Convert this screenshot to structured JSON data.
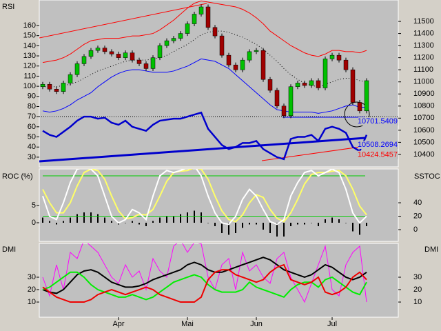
{
  "chart_data": [
    {
      "type": "candlestick",
      "y_label": "RSI",
      "open": [
        10960,
        10980,
        10940,
        10920,
        10990,
        11060,
        11150,
        11210,
        11260,
        11280,
        11250,
        11230,
        11200,
        11240,
        11180,
        11150,
        11110,
        11200,
        11300,
        11340,
        11360,
        11400,
        11480,
        11560,
        11620,
        11450,
        11380,
        11220,
        11140,
        11100,
        11180,
        11250,
        11260,
        11020,
        10930,
        10800,
        10720,
        10960,
        10990,
        10970,
        11010,
        10950,
        11190,
        11220,
        11180,
        11100,
        10830,
        10760
      ],
      "high": [
        11000,
        11000,
        10960,
        11010,
        11080,
        11170,
        11230,
        11280,
        11300,
        11300,
        11270,
        11250,
        11260,
        11260,
        11200,
        11170,
        11220,
        11320,
        11360,
        11380,
        11420,
        11500,
        11580,
        11640,
        11640,
        11470,
        11400,
        11240,
        11160,
        11200,
        11270,
        11280,
        11280,
        11040,
        10950,
        10820,
        10980,
        11010,
        11010,
        11030,
        11030,
        11210,
        11240,
        11240,
        11200,
        11120,
        10850,
        11030
      ],
      "low": [
        10940,
        10920,
        10900,
        10900,
        10970,
        11040,
        11130,
        11190,
        11240,
        11230,
        11210,
        11180,
        11180,
        11160,
        11130,
        11090,
        11090,
        11180,
        11280,
        11320,
        11340,
        11380,
        11460,
        11540,
        11430,
        11360,
        11200,
        11120,
        11080,
        11080,
        11160,
        11230,
        11000,
        10910,
        10780,
        10700,
        10700,
        10940,
        10950,
        10950,
        10930,
        10930,
        11170,
        11160,
        11080,
        10810,
        10740,
        10740
      ],
      "close": [
        10980,
        10940,
        10920,
        10990,
        11060,
        11150,
        11210,
        11260,
        11280,
        11250,
        11230,
        11200,
        11240,
        11180,
        11150,
        11110,
        11200,
        11300,
        11340,
        11360,
        11400,
        11480,
        11560,
        11620,
        11450,
        11380,
        11220,
        11140,
        11100,
        11180,
        11250,
        11260,
        11020,
        10930,
        10800,
        10720,
        10960,
        10990,
        10970,
        11010,
        10950,
        11190,
        11220,
        11180,
        11100,
        10830,
        10760,
        11010
      ],
      "up_color": "#00c000",
      "down_color": "#a00000",
      "series": [
        {
          "color": "#ff0000",
          "style": "solid",
          "values": [
            11160,
            11170,
            11180,
            11200,
            11230,
            11270,
            11310,
            11340,
            11350,
            11360,
            11360,
            11360,
            11370,
            11380,
            11380,
            11390,
            11400,
            11430,
            11470,
            11510,
            11560,
            11610,
            11650,
            11670,
            11660,
            11650,
            11640,
            11630,
            11620,
            11600,
            11570,
            11530,
            11480,
            11420,
            11380,
            11340,
            11300,
            11270,
            11240,
            11220,
            11210,
            11230,
            11260,
            11260,
            11250,
            11250,
            11240,
            11260
          ]
        },
        {
          "color": "#000000",
          "style": "dotted",
          "values": [
            10960,
            10960,
            10960,
            10970,
            10980,
            11000,
            11030,
            11060,
            11090,
            11110,
            11130,
            11150,
            11170,
            11180,
            11180,
            11180,
            11190,
            11200,
            11220,
            11250,
            11280,
            11310,
            11350,
            11390,
            11410,
            11420,
            11420,
            11410,
            11390,
            11370,
            11340,
            11310,
            11270,
            11220,
            11170,
            11110,
            11060,
            11020,
            10990,
            10970,
            10960,
            10980,
            11000,
            11020,
            11030,
            11030,
            11010,
            11000
          ]
        },
        {
          "color": "#0000ff",
          "style": "solid",
          "values": [
            10760,
            10750,
            10760,
            10780,
            10810,
            10850,
            10880,
            10910,
            10960,
            11000,
            11040,
            11070,
            11090,
            11100,
            11100,
            11090,
            11080,
            11080,
            11080,
            11090,
            11110,
            11130,
            11160,
            11190,
            11180,
            11170,
            11140,
            11110,
            11060,
            11010,
            10960,
            10910,
            10860,
            10810,
            10770,
            10760,
            10750,
            10750,
            10750,
            10750,
            10740,
            10750,
            10760,
            10780,
            10800,
            10810,
            10790,
            10790
          ]
        },
        {
          "color": "#0000cc",
          "style": "thick",
          "axis": "y2",
          "values": [
            56,
            52,
            50,
            55,
            60,
            66,
            70,
            70,
            68,
            69,
            64,
            62,
            66,
            60,
            58,
            56,
            62,
            66,
            67,
            68,
            68,
            70,
            72,
            74,
            58,
            50,
            42,
            38,
            40,
            44,
            44,
            46,
            38,
            34,
            30,
            28,
            48,
            50,
            50,
            52,
            46,
            58,
            60,
            58,
            54,
            40,
            36,
            52
          ]
        }
      ],
      "ylim": [
        10297,
        11677
      ],
      "yticks": [
        11500,
        11400,
        11300,
        11200,
        11100,
        11000,
        10900,
        10800,
        10700,
        10600,
        10500,
        10400
      ],
      "y2lim": [
        20.4,
        185.2
      ],
      "y2ticks": [
        160,
        150,
        140,
        130,
        120,
        110,
        100,
        90,
        80,
        70,
        60,
        50,
        40,
        30
      ],
      "rsi_level": 70,
      "annotations": [
        {
          "text": "10701.5409",
          "color": "#0000ff"
        },
        {
          "text": "10508.2694",
          "color": "#0000ff"
        },
        {
          "text": "10424.5457",
          "color": "#ff0000"
        }
      ]
    },
    {
      "type": "oscillator",
      "y_label": "ROC (%)",
      "y2_label": "SSTOC",
      "bars": [
        1.5,
        0.5,
        -0.5,
        0.5,
        1.5,
        2.5,
        3,
        3,
        2.5,
        1.5,
        0.5,
        -0.5,
        0,
        0.5,
        -0.5,
        -1,
        0.5,
        1.5,
        2,
        2,
        2.5,
        3,
        3.5,
        3,
        0,
        -1,
        -3,
        -3.5,
        -3,
        -1.5,
        -0.5,
        -0.5,
        -2,
        -3,
        -4,
        -4,
        -1,
        -0.5,
        -0.5,
        0,
        -1,
        1,
        1.5,
        1,
        0,
        -2.5,
        -3.5,
        -1
      ],
      "bar_color": "#000000",
      "series": [
        {
          "color": "#ffff66",
          "axis": "y2",
          "values": [
            60,
            40,
            25,
            25,
            40,
            65,
            85,
            90,
            88,
            75,
            50,
            28,
            16,
            18,
            23,
            22,
            30,
            50,
            72,
            85,
            87,
            88,
            92,
            90,
            75,
            50,
            28,
            15,
            12,
            22,
            40,
            52,
            48,
            30,
            17,
            12,
            25,
            45,
            68,
            82,
            85,
            85,
            87,
            88,
            80,
            60,
            35,
            22
          ]
        },
        {
          "color": "#ffffff",
          "axis": "y2",
          "values": [
            50,
            20,
            15,
            40,
            70,
            90,
            92,
            90,
            80,
            50,
            20,
            10,
            15,
            30,
            25,
            15,
            50,
            80,
            88,
            85,
            88,
            92,
            95,
            80,
            50,
            25,
            10,
            8,
            20,
            45,
            60,
            50,
            30,
            12,
            8,
            15,
            50,
            70,
            85,
            88,
            80,
            85,
            90,
            85,
            60,
            25,
            10,
            20
          ]
        }
      ],
      "ylim": [
        -5.4,
        15.6
      ],
      "yticks": [
        5,
        0
      ],
      "y2lim": [
        -17.4,
        90.3
      ],
      "y2ticks": [
        40,
        20,
        0
      ],
      "levels": [
        80,
        20
      ],
      "level_color": "#00cc00"
    },
    {
      "type": "line",
      "y_label": "DMI",
      "y2_label": "DMI",
      "categories": [
        null,
        null,
        null,
        null,
        null,
        null,
        null,
        null,
        null,
        null,
        null,
        "Apr",
        null,
        null,
        null,
        null,
        null,
        null,
        null,
        null,
        null,
        "Mai",
        null,
        null,
        null,
        null,
        null,
        null,
        null,
        null,
        null,
        "Jun",
        null,
        null,
        null,
        null,
        null,
        null,
        null,
        null,
        null,
        null,
        "Jul",
        null,
        null,
        null,
        null,
        null
      ],
      "series": [
        {
          "color": "#ff00ff",
          "width": 1,
          "values": [
            30,
            15,
            40,
            20,
            50,
            45,
            60,
            55,
            50,
            40,
            30,
            25,
            40,
            30,
            35,
            20,
            45,
            35,
            30,
            55,
            60,
            50,
            58,
            57,
            30,
            20,
            40,
            45,
            20,
            50,
            35,
            40,
            30,
            25,
            45,
            50,
            30,
            20,
            10,
            25,
            40,
            55,
            20,
            15,
            40,
            50,
            55,
            10
          ]
        },
        {
          "color": "#000000",
          "width": 2,
          "values": [
            20,
            18,
            17,
            20,
            26,
            32,
            35,
            36,
            34,
            30,
            26,
            24,
            22,
            22,
            23,
            25,
            28,
            30,
            32,
            34,
            36,
            40,
            42,
            40,
            36,
            34,
            34,
            36,
            38,
            40,
            42,
            44,
            46,
            44,
            40,
            36,
            34,
            32,
            30,
            32,
            36,
            40,
            38,
            34,
            30,
            28,
            30,
            34
          ]
        },
        {
          "color": "#00ee00",
          "width": 2,
          "values": [
            20,
            22,
            26,
            30,
            34,
            34,
            30,
            24,
            20,
            18,
            16,
            14,
            14,
            16,
            14,
            12,
            14,
            18,
            22,
            26,
            28,
            30,
            32,
            30,
            24,
            20,
            18,
            18,
            18,
            20,
            26,
            22,
            20,
            18,
            16,
            14,
            20,
            24,
            26,
            26,
            22,
            28,
            30,
            26,
            22,
            18,
            16,
            26
          ]
        },
        {
          "color": "#ee0000",
          "width": 2,
          "values": [
            22,
            18,
            14,
            12,
            10,
            10,
            10,
            12,
            16,
            18,
            20,
            18,
            16,
            18,
            20,
            22,
            20,
            16,
            14,
            12,
            10,
            10,
            10,
            14,
            28,
            34,
            36,
            36,
            32,
            30,
            28,
            26,
            28,
            34,
            38,
            40,
            28,
            26,
            24,
            26,
            30,
            18,
            16,
            18,
            22,
            30,
            34,
            28
          ]
        }
      ],
      "ylim": [
        -2.2,
        57.2
      ],
      "yticks": [
        30,
        20,
        10
      ],
      "y2lim": [
        -2.2,
        57.2
      ],
      "y2ticks": [
        30,
        20,
        10
      ]
    }
  ]
}
